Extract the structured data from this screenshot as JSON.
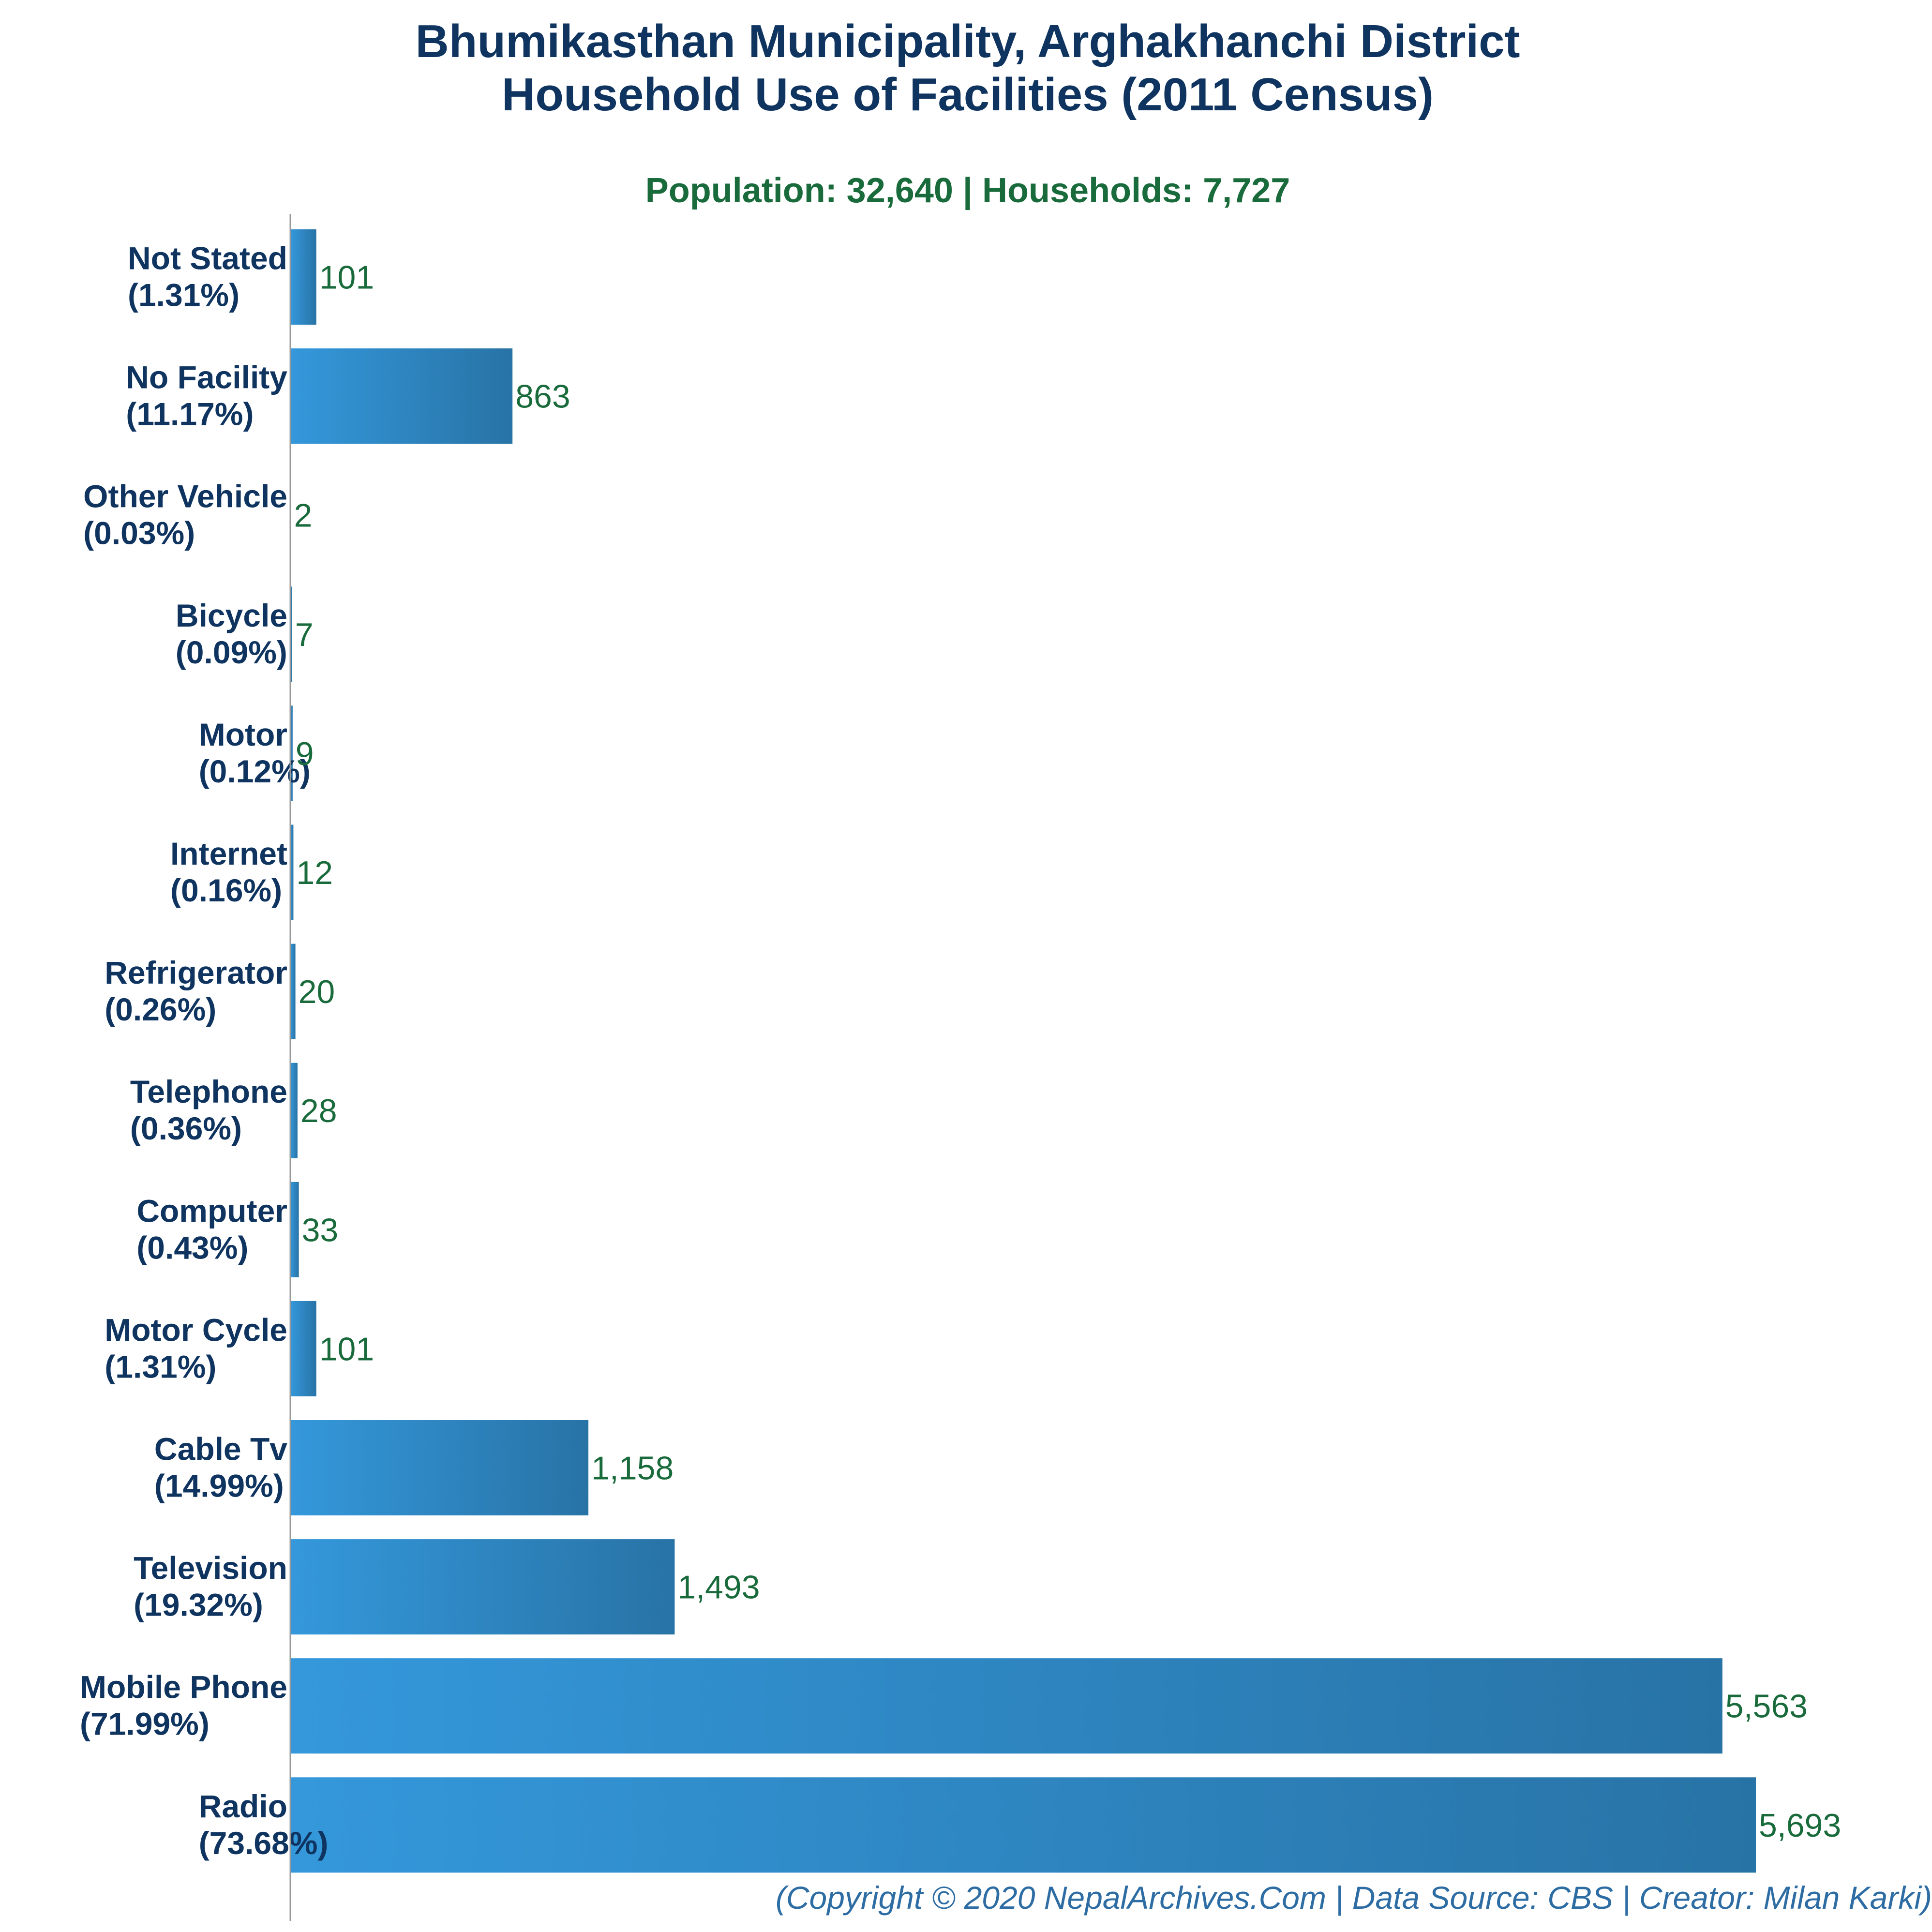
{
  "colors": {
    "title": "#0f3460",
    "subtitle": "#1a6b3c",
    "value_label": "#1a6b3c",
    "category_label": "#0f3460",
    "footer": "#2e6da4",
    "bar_gradient_start": "#3498db",
    "bar_gradient_end": "#2873a6",
    "axis": "#999999",
    "background": "#ffffff"
  },
  "header": {
    "title_line1": "Bhumikasthan Municipality, Arghakhanchi District",
    "title_line2": "Household Use of Facilities (2011 Census)",
    "subtitle": "Population: 32,640 | Households: 7,727"
  },
  "footer": {
    "text": "(Copyright © 2020 NepalArchives.Com | Data Source: CBS | Creator: Milan Karki)"
  },
  "chart_data": {
    "type": "bar",
    "orientation": "horizontal",
    "title": "Bhumikasthan Municipality, Arghakhanchi District\nHousehold Use of Facilities (2011 Census)",
    "subtitle": "Population: 32,640 | Households: 7,727",
    "xlabel": "",
    "ylabel": "",
    "grid": false,
    "legend": "none",
    "xlim": [
      0,
      6000
    ],
    "categories": [
      "Not Stated",
      "No Facility",
      "Other Vehicle",
      "Bicycle",
      "Motor",
      "Internet",
      "Refrigerator",
      "Telephone",
      "Computer",
      "Motor Cycle",
      "Cable Tv",
      "Television",
      "Mobile Phone",
      "Radio"
    ],
    "percent_labels": [
      "(1.31%)",
      "(11.17%)",
      "(0.03%)",
      "(0.09%)",
      "(0.12%)",
      "(0.16%)",
      "(0.26%)",
      "(0.36%)",
      "(0.43%)",
      "(1.31%)",
      "(14.99%)",
      "(19.32%)",
      "(71.99%)",
      "(73.68%)"
    ],
    "values": [
      101,
      863,
      2,
      7,
      9,
      12,
      20,
      28,
      33,
      101,
      1158,
      1493,
      5563,
      5693
    ],
    "value_labels": [
      "101",
      "863",
      "2",
      "7",
      "9",
      "12",
      "20",
      "28",
      "33",
      "101",
      "1,158",
      "1,493",
      "5,563",
      "5,693"
    ]
  }
}
